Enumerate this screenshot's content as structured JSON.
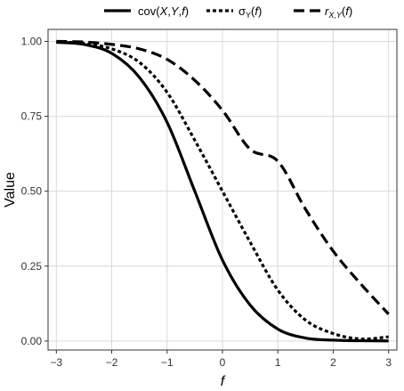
{
  "chart_data": {
    "type": "line",
    "title": "",
    "xlabel": "f",
    "ylabel": "Value",
    "xlim": [
      -3.15,
      3.15
    ],
    "ylim": [
      -0.03,
      1.04
    ],
    "x_ticks": [
      -3,
      -2,
      -1,
      0,
      1,
      2,
      3
    ],
    "x_tick_labels": [
      "−3",
      "−2",
      "−1",
      "0",
      "1",
      "2",
      "3"
    ],
    "y_ticks": [
      0,
      0.25,
      0.5,
      0.75,
      1
    ],
    "y_tick_labels": [
      "0.00",
      "0.25",
      "0.50",
      "0.75",
      "1.00"
    ],
    "grid": true,
    "legend_position": "top",
    "x": [
      -3,
      -2.5,
      -2,
      -1.5,
      -1,
      -0.5,
      0,
      0.5,
      1,
      1.5,
      2,
      2.5,
      3
    ],
    "series": [
      {
        "name": "cov(X,Y,f)",
        "legend": {
          "prefix": "cov(",
          "vars": [
            "X",
            "Y",
            "f"
          ],
          "suffix": ")"
        },
        "line_style": "solid",
        "color": "#000000",
        "values": [
          0.997,
          0.99,
          0.96,
          0.88,
          0.73,
          0.5,
          0.27,
          0.12,
          0.04,
          0.01,
          0.003,
          0.001,
          0.0005
        ]
      },
      {
        "name": "σY(f)",
        "legend": {
          "greek": "σ",
          "sub": "Y",
          "arg": "f"
        },
        "line_style": "dotted",
        "color": "#000000",
        "values": [
          0.998,
          0.993,
          0.975,
          0.93,
          0.83,
          0.67,
          0.5,
          0.33,
          0.17,
          0.07,
          0.025,
          0.007,
          0.014
        ]
      },
      {
        "name": "rX,Y(f)",
        "legend": {
          "var": "r",
          "sub": "X,Y",
          "arg": "f"
        },
        "line_style": "dashed",
        "color": "#000000",
        "values": [
          1.0,
          0.998,
          0.99,
          0.975,
          0.94,
          0.87,
          0.77,
          0.64,
          0.6,
          0.44,
          0.3,
          0.19,
          0.09
        ]
      }
    ]
  }
}
